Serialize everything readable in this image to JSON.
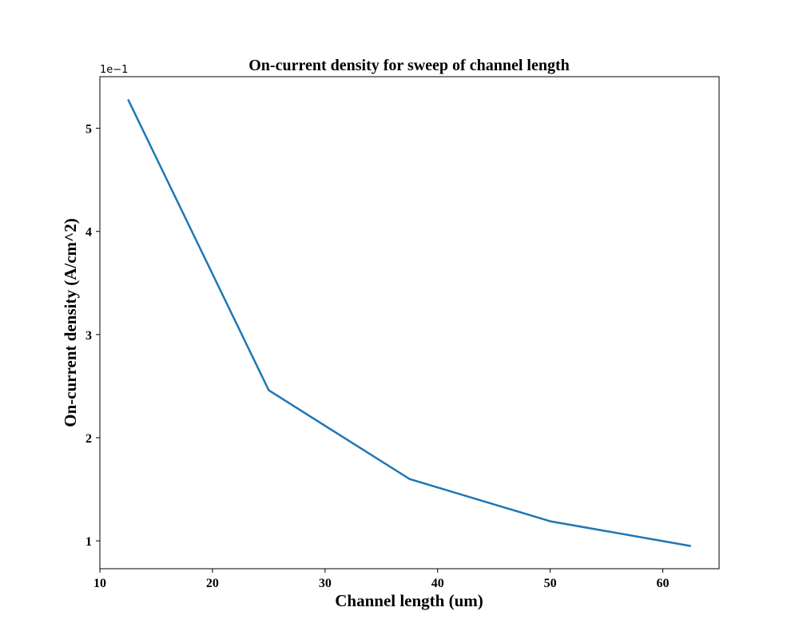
{
  "chart_data": {
    "type": "line",
    "title": "On-current density for sweep of channel length",
    "xlabel": "Channel length (um)",
    "ylabel": "On-current density (A/cm^2)",
    "y_offset_label": "1e−1",
    "xlim": [
      10,
      65
    ],
    "ylim": [
      0.073,
      0.55
    ],
    "x_ticks": [
      10,
      20,
      30,
      40,
      50,
      60
    ],
    "x_tick_labels": [
      "10",
      "20",
      "30",
      "40",
      "50",
      "60"
    ],
    "y_ticks": [
      0.1,
      0.2,
      0.3,
      0.4,
      0.5
    ],
    "y_tick_labels": [
      "1",
      "2",
      "3",
      "4",
      "5"
    ],
    "grid": false,
    "series": [
      {
        "color": "#1f77b4",
        "x": [
          12.5,
          25,
          37.5,
          50,
          62.5
        ],
        "y": [
          0.528,
          0.246,
          0.16,
          0.119,
          0.095
        ]
      }
    ]
  }
}
